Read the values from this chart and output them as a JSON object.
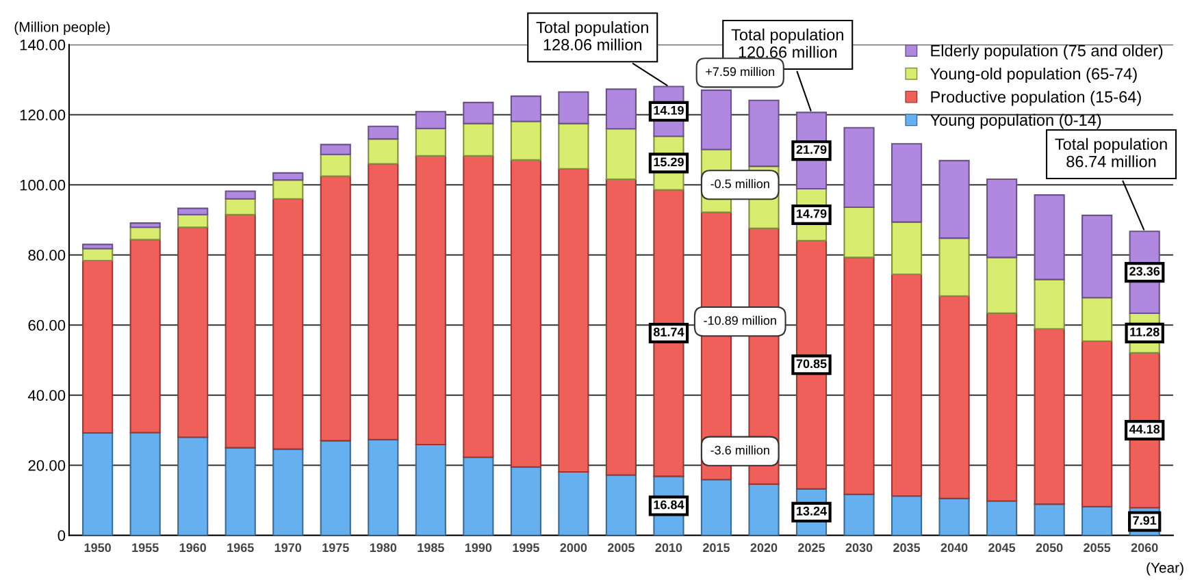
{
  "chart_data": {
    "type": "bar",
    "stacked": true,
    "ylabel": "(Million people)",
    "xlabel": "(Year)",
    "categories": [
      "1950",
      "1955",
      "1960",
      "1965",
      "1970",
      "1975",
      "1980",
      "1985",
      "1990",
      "1995",
      "2000",
      "2005",
      "2010",
      "2015",
      "2020",
      "2025",
      "2030",
      "2035",
      "2040",
      "2045",
      "2050",
      "2055",
      "2060"
    ],
    "series": [
      {
        "name": "Young population (0-14)",
        "color": "#66b0f0",
        "values": [
          29.2,
          29.3,
          28.0,
          25.0,
          24.6,
          27.0,
          27.3,
          25.9,
          22.3,
          19.5,
          18.1,
          17.2,
          16.84,
          15.9,
          14.6,
          13.24,
          11.7,
          11.2,
          10.5,
          9.8,
          8.9,
          8.2,
          7.91
        ],
        "value_labels": [
          null,
          null,
          null,
          null,
          null,
          null,
          null,
          null,
          null,
          null,
          null,
          null,
          "16.84",
          null,
          null,
          "13.24",
          null,
          null,
          null,
          null,
          null,
          null,
          "7.91"
        ]
      },
      {
        "name": "Productive population (15-64)",
        "color": "#f0605a",
        "values": [
          49.2,
          55.1,
          59.9,
          66.5,
          71.4,
          75.5,
          78.7,
          82.4,
          86.0,
          87.6,
          86.5,
          84.4,
          81.74,
          76.3,
          73.0,
          70.85,
          67.6,
          63.3,
          57.8,
          53.6,
          50.0,
          47.2,
          44.18
        ],
        "value_labels": [
          null,
          null,
          null,
          null,
          null,
          null,
          null,
          null,
          null,
          null,
          null,
          null,
          "81.74",
          null,
          null,
          "70.85",
          null,
          null,
          null,
          null,
          null,
          null,
          "44.18"
        ]
      },
      {
        "name": "Young-old population (65-74)",
        "color": "#d8ec70",
        "values": [
          3.4,
          3.5,
          3.6,
          4.5,
          5.4,
          6.2,
          7.1,
          7.8,
          9.2,
          11.0,
          12.9,
          14.4,
          15.29,
          17.9,
          17.7,
          14.79,
          14.3,
          14.9,
          16.5,
          15.9,
          14.1,
          12.4,
          11.28
        ],
        "value_labels": [
          null,
          null,
          null,
          null,
          null,
          null,
          null,
          null,
          null,
          null,
          null,
          null,
          "15.29",
          null,
          null,
          "14.79",
          null,
          null,
          null,
          null,
          null,
          null,
          "11.28"
        ]
      },
      {
        "name": "Elderly population (75 and older)",
        "color": "#b088e0",
        "values": [
          1.2,
          1.2,
          1.8,
          2.2,
          2.0,
          2.8,
          3.6,
          4.8,
          6.0,
          7.2,
          9.0,
          11.3,
          14.19,
          16.9,
          18.8,
          21.79,
          22.7,
          22.3,
          22.1,
          22.3,
          24.1,
          23.5,
          23.36
        ],
        "value_labels": [
          null,
          null,
          null,
          null,
          null,
          null,
          null,
          null,
          null,
          null,
          null,
          null,
          "14.19",
          null,
          null,
          "21.79",
          null,
          null,
          null,
          null,
          null,
          null,
          "23.36"
        ]
      }
    ],
    "ylim": [
      0,
      140
    ],
    "yticks": [
      0,
      {
        "value": 20,
        "label": "20.00"
      },
      {
        "value": 40,
        "label": "40.00"
      },
      {
        "value": 60,
        "label": "60.00"
      },
      {
        "value": 80,
        "label": "80.00"
      },
      {
        "value": 100,
        "label": "100.00"
      },
      {
        "value": 120,
        "label": "120.00"
      },
      {
        "value": 140,
        "label": "140.00"
      }
    ],
    "grid": "y",
    "legend": "top right",
    "annotations": [
      {
        "text": "Total population\n128.06 million",
        "x": "2010",
        "y": 128.06
      },
      {
        "text": "Total population\n120.66 million",
        "x": "2025",
        "y": 120.66
      },
      {
        "text": "Total population\n86.74 million",
        "x": "2060",
        "y": 86.74
      },
      "+7.59 million",
      "-0.5 million",
      "-10.89 million",
      "-3.6 million"
    ]
  }
}
